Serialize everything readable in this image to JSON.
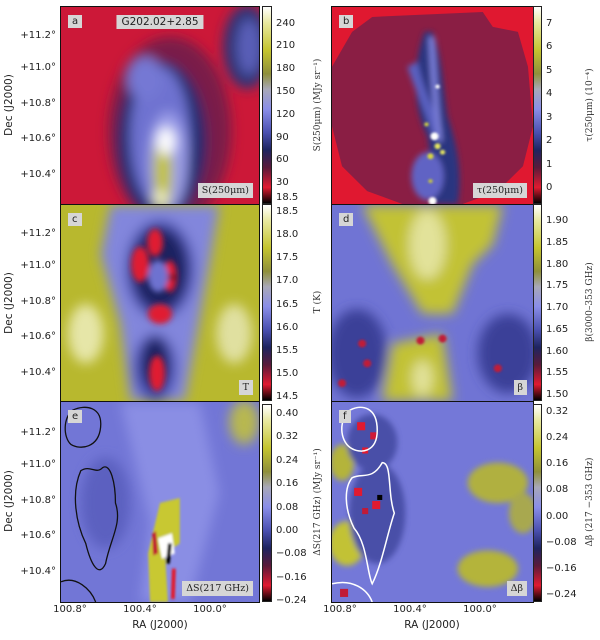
{
  "axes": {
    "dec_label": "Dec (J2000)",
    "ra_label": "RA (J2000)",
    "dec_ticks": [
      "+11.2°",
      "+11.0°",
      "+10.8°",
      "+10.6°",
      "+10.4°"
    ],
    "ra_ticks": [
      "100.8°",
      "100.4°",
      "100.0°"
    ]
  },
  "panels": [
    {
      "letter": "a",
      "title": "G202.02+2.85",
      "name": "S(250μm)",
      "colorbar": {
        "label": "S(250μm) (MJy sr⁻¹)",
        "ticks": [
          "240",
          "210",
          "180",
          "150",
          "120",
          "90",
          "60",
          "30",
          "18.5"
        ]
      }
    },
    {
      "letter": "b",
      "name": "τ(250μm)",
      "colorbar": {
        "label": "τ(250μm) (10⁻⁴)",
        "ticks": [
          "7",
          "6",
          "5",
          "4",
          "3",
          "2",
          "1",
          "0"
        ]
      }
    },
    {
      "letter": "c",
      "name": "T",
      "colorbar": {
        "label": "T (K)",
        "ticks": [
          "18.5",
          "18.0",
          "17.5",
          "17.0",
          "16.5",
          "16.0",
          "15.5",
          "15.0",
          "14.5"
        ]
      }
    },
    {
      "letter": "d",
      "name": "β",
      "colorbar": {
        "label": "β(3000–353 GHz)",
        "ticks": [
          "1.90",
          "1.85",
          "1.80",
          "1.75",
          "1.70",
          "1.65",
          "1.60",
          "1.55",
          "1.50"
        ]
      }
    },
    {
      "letter": "e",
      "name": "ΔS(217 GHz)",
      "colorbar": {
        "label": "ΔS(217 GHz) (MJy sr⁻¹)",
        "ticks": [
          "0.40",
          "0.32",
          "0.24",
          "0.16",
          "0.08",
          "0.00",
          "−0.08",
          "−0.16",
          "−0.24"
        ]
      }
    },
    {
      "letter": "f",
      "name": "Δβ",
      "colorbar": {
        "label": "Δβ (217 −353 GHz)",
        "ticks": [
          "0.32",
          "0.24",
          "0.16",
          "0.08",
          "0.00",
          "−0.08",
          "−0.16",
          "−0.24"
        ]
      }
    }
  ],
  "colors": {
    "low": "#e01a30",
    "mid": "#8a8ee8",
    "high": "#c4c430",
    "max": "#ffffff",
    "contour_e": "#111111",
    "contour_f": "#ffffff"
  }
}
